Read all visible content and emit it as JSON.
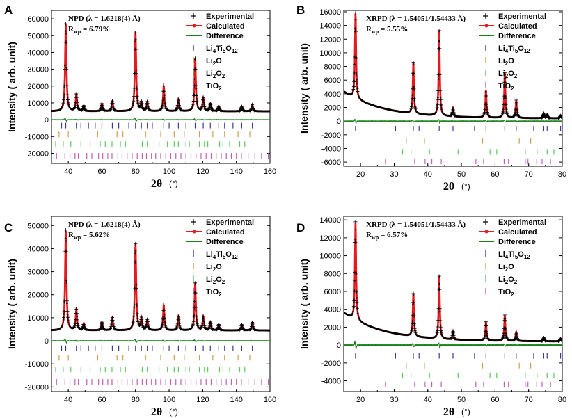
{
  "chart_data": [
    {
      "id": "A",
      "type": "line",
      "panel_label": "A",
      "annotation_title": "NPD (λ = 1.6218(4) Å)",
      "annotation_rwp": "R",
      "annotation_rwp_sub": "wp",
      "annotation_rwp_value": " = 6.79%",
      "ylabel": "Intensity ( arb. unit)",
      "xlabel": "2θ",
      "xlabel_unit": "(°)",
      "xlim": [
        30,
        160
      ],
      "ylim": [
        -26000,
        65000
      ],
      "xticks": [
        40,
        60,
        80,
        100,
        120,
        140,
        160
      ],
      "yticks": [
        -20000,
        -10000,
        0,
        10000,
        20000,
        30000,
        40000,
        50000,
        60000
      ],
      "background": {
        "start": 5000,
        "end": 5000,
        "decay": 0
      },
      "peaks": [
        {
          "x": 38.5,
          "h": 52000
        },
        {
          "x": 44.8,
          "h": 10000
        },
        {
          "x": 49.2,
          "h": 3200
        },
        {
          "x": 60,
          "h": 4500
        },
        {
          "x": 66.2,
          "h": 6000
        },
        {
          "x": 80,
          "h": 46500
        },
        {
          "x": 83.5,
          "h": 5000
        },
        {
          "x": 87,
          "h": 5500
        },
        {
          "x": 96.8,
          "h": 15000
        },
        {
          "x": 105.5,
          "h": 7000
        },
        {
          "x": 115.5,
          "h": 31500
        },
        {
          "x": 120.3,
          "h": 8000
        },
        {
          "x": 124.5,
          "h": 4500
        },
        {
          "x": 129.5,
          "h": 3000
        },
        {
          "x": 143.2,
          "h": 2800
        },
        {
          "x": 149.5,
          "h": 4000
        }
      ],
      "peak_width": 0.7,
      "difference_offset": 0,
      "difference_amp": 2000,
      "legend": [
        {
          "label": "Experimental",
          "type": "cross",
          "color": "#000000"
        },
        {
          "label": "Calculated",
          "type": "redline",
          "color": "#e41a1c"
        },
        {
          "label": "Difference",
          "type": "line",
          "color": "#1a7f1a"
        }
      ],
      "phases": [
        {
          "base": "Li",
          "parts": [
            [
              "Li",
              "4"
            ],
            [
              "Ti",
              "5"
            ],
            [
              "O",
              "12"
            ]
          ],
          "color": "#3a3a9a",
          "y": -3500,
          "ticks": [
            36,
            38.5,
            44.8,
            47.5,
            52,
            56,
            60,
            66.2,
            70,
            76,
            80,
            83.5,
            87,
            90,
            96.8,
            100,
            105.5,
            110,
            115.5,
            120.3,
            124.5,
            129.5,
            133,
            138,
            143.2,
            149.5
          ]
        },
        {
          "base": "Li2O",
          "parts": [
            [
              "Li",
              ""
            ],
            [
              "",
              ""
            ],
            [
              "O",
              ""
            ]
          ],
          "color": "#c8a050",
          "y": -8700,
          "ticks": [
            34.5,
            40,
            57.5,
            69,
            72.5,
            86,
            95,
            103,
            109,
            118,
            126,
            133,
            141,
            148
          ]
        },
        {
          "base": "Li2O2",
          "parts": [],
          "color": "#5ec85e",
          "y": -14500,
          "ticks": [
            32.5,
            37,
            41.5,
            47.5,
            53,
            59,
            62,
            66,
            71,
            74,
            84,
            87,
            94,
            99,
            103,
            105.5,
            110,
            112,
            118,
            121,
            123,
            130,
            132,
            136,
            142,
            145
          ]
        },
        {
          "base": "TiO2",
          "parts": [],
          "color": "#c060b0",
          "y": -21500,
          "ticks": [
            33,
            38,
            41,
            44,
            46,
            51,
            54,
            58,
            60.5,
            63.5,
            66,
            69.5,
            72,
            75,
            78,
            81,
            84,
            86.5,
            89.5,
            92,
            95,
            98,
            101,
            104,
            107,
            110,
            113,
            116,
            119,
            122,
            125,
            128,
            131,
            134,
            137,
            140,
            143,
            147,
            151,
            155,
            159
          ]
        }
      ]
    },
    {
      "id": "B",
      "type": "line",
      "panel_label": "B",
      "annotation_title": "XRPD (λ = 1.54051/1.54433 Å)",
      "annotation_rwp": "R",
      "annotation_rwp_sub": "wp",
      "annotation_rwp_value": " = 5.55%",
      "ylabel": "Intensity ( arb. unit)",
      "xlabel": "2θ",
      "xlabel_unit": "(°)",
      "xlim": [
        15,
        80
      ],
      "ylim": [
        -6600,
        16200
      ],
      "xticks": [
        20,
        30,
        40,
        50,
        60,
        70,
        80
      ],
      "yticks": [
        -6000,
        -4000,
        -2000,
        0,
        2000,
        4000,
        6000,
        8000,
        10000,
        12000,
        14000,
        16000
      ],
      "background": {
        "start": 4300,
        "end": 400,
        "decay": 12
      },
      "peaks": [
        {
          "x": 18.5,
          "h": 12500
        },
        {
          "x": 35.7,
          "h": 7500
        },
        {
          "x": 43.4,
          "h": 12500
        },
        {
          "x": 47.5,
          "h": 1200
        },
        {
          "x": 57.3,
          "h": 4000
        },
        {
          "x": 62.9,
          "h": 6600
        },
        {
          "x": 66.3,
          "h": 2600
        },
        {
          "x": 74.5,
          "h": 700
        },
        {
          "x": 75.5,
          "h": 500
        },
        {
          "x": 79.5,
          "h": 400
        }
      ],
      "peak_width": 0.3,
      "difference_offset": 0,
      "difference_amp": 600,
      "legend": [
        {
          "label": "Experimental",
          "type": "cross",
          "color": "#000000"
        },
        {
          "label": "Calculated",
          "type": "redline",
          "color": "#e41a1c"
        },
        {
          "label": "Difference",
          "type": "line",
          "color": "#1a7f1a"
        }
      ],
      "phases": [
        {
          "base": "Li",
          "parts": [],
          "color": "#3a3a9a",
          "y": -1100,
          "ticks": [
            18.5,
            30.4,
            35.7,
            37.4,
            43.4,
            47.5,
            53.9,
            57.3,
            62.9,
            66.3,
            71.5,
            74.5,
            75.5,
            79.5
          ]
        },
        {
          "base": "Li2O",
          "parts": [],
          "color": "#c8a050",
          "y": -2900,
          "ticks": [
            33.6,
            39,
            56.3,
            67.2,
            70.6
          ]
        },
        {
          "base": "Li2O2",
          "parts": [],
          "color": "#5ec85e",
          "y": -4500,
          "ticks": [
            32.5,
            35,
            40.5,
            49,
            58.5,
            60.5,
            69,
            72.5,
            75.5,
            77.5
          ]
        },
        {
          "base": "TiO2",
          "parts": [],
          "color": "#c060b0",
          "y": -5900,
          "ticks": [
            27.4,
            36.1,
            39.2,
            41.2,
            44,
            54.3,
            56.6,
            62.7,
            64,
            69,
            69.8,
            72.4,
            74,
            76.5
          ]
        }
      ]
    },
    {
      "id": "C",
      "type": "line",
      "panel_label": "C",
      "annotation_title": "NPD (λ = 1.6218(4) Å)",
      "annotation_rwp": "R",
      "annotation_rwp_sub": "wp",
      "annotation_rwp_value": " = 5.62%",
      "ylabel": "Intensity ( arb. unit)",
      "xlabel": "2θ",
      "xlabel_unit": "(°)",
      "xlim": [
        30,
        160
      ],
      "ylim": [
        -22000,
        54000
      ],
      "xticks": [
        40,
        60,
        80,
        100,
        120,
        140,
        160
      ],
      "yticks": [
        -20000,
        -10000,
        0,
        10000,
        20000,
        30000,
        40000,
        50000
      ],
      "background": {
        "start": 4500,
        "end": 4500,
        "decay": 0
      },
      "peaks": [
        {
          "x": 38.5,
          "h": 43500
        },
        {
          "x": 44.8,
          "h": 9000
        },
        {
          "x": 49.2,
          "h": 3000
        },
        {
          "x": 60,
          "h": 3500
        },
        {
          "x": 66.2,
          "h": 5500
        },
        {
          "x": 80,
          "h": 37500
        },
        {
          "x": 83.5,
          "h": 5000
        },
        {
          "x": 87,
          "h": 4500
        },
        {
          "x": 96.8,
          "h": 11000
        },
        {
          "x": 105.5,
          "h": 6000
        },
        {
          "x": 115.5,
          "h": 20500
        },
        {
          "x": 120.3,
          "h": 6000
        },
        {
          "x": 124.5,
          "h": 3500
        },
        {
          "x": 129.5,
          "h": 2500
        },
        {
          "x": 143.2,
          "h": 2500
        },
        {
          "x": 149.5,
          "h": 3500
        }
      ],
      "peak_width": 0.7,
      "difference_offset": 0,
      "difference_amp": 1800,
      "legend": [
        {
          "label": "Experimental",
          "type": "cross",
          "color": "#000000"
        },
        {
          "label": "Calculated",
          "type": "redline",
          "color": "#e41a1c"
        },
        {
          "label": "Difference",
          "type": "line",
          "color": "#1a7f1a"
        }
      ],
      "phases": [
        {
          "base": "Li",
          "parts": [],
          "color": "#3a3a9a",
          "y": -3200,
          "ticks": [
            36,
            38.5,
            44.8,
            47.5,
            52,
            56,
            60,
            66.2,
            70,
            76,
            80,
            83.5,
            87,
            90,
            96.8,
            100,
            105.5,
            110,
            115.5,
            120.3,
            124.5,
            129.5,
            133,
            138,
            143.2,
            149.5
          ]
        },
        {
          "base": "Li2O",
          "parts": [],
          "color": "#c8a050",
          "y": -7300,
          "ticks": [
            34.5,
            40,
            57.5,
            69,
            72.5,
            86,
            95,
            103,
            109,
            118,
            126,
            133,
            141,
            148
          ]
        },
        {
          "base": "Li2O2",
          "parts": [],
          "color": "#5ec85e",
          "y": -12400,
          "ticks": [
            32.5,
            37,
            41.5,
            47.5,
            53,
            59,
            62,
            66,
            71,
            74,
            84,
            87,
            94,
            99,
            103,
            105.5,
            110,
            112,
            118,
            121,
            123,
            130,
            132,
            136,
            142,
            145
          ]
        },
        {
          "base": "TiO2",
          "parts": [],
          "color": "#c060b0",
          "y": -17800,
          "ticks": [
            33,
            38,
            41,
            44,
            46,
            51,
            54,
            58,
            60.5,
            63.5,
            66,
            69.5,
            72,
            75,
            78,
            81,
            84,
            86.5,
            89.5,
            92,
            95,
            98,
            101,
            104,
            107,
            110,
            113,
            116,
            119,
            122,
            125,
            128,
            131,
            134,
            137,
            140,
            143,
            147,
            151,
            155,
            159
          ]
        }
      ]
    },
    {
      "id": "D",
      "type": "line",
      "panel_label": "D",
      "annotation_title": "XRPD (λ = 1.54051/1.54433 Å)",
      "annotation_rwp": "R",
      "annotation_rwp_sub": "wp",
      "annotation_rwp_value": " = 6.57%",
      "ylabel": "Intensity ( arb. unit)",
      "xlabel": "2θ",
      "xlabel_unit": "(°)",
      "xlim": [
        15,
        80
      ],
      "ylim": [
        -5200,
        14400
      ],
      "xticks": [
        20,
        30,
        40,
        50,
        60,
        70,
        80
      ],
      "yticks": [
        -4000,
        -2000,
        0,
        2000,
        4000,
        6000,
        8000,
        10000,
        12000,
        14000
      ],
      "background": {
        "start": 3600,
        "end": 400,
        "decay": 12
      },
      "peaks": [
        {
          "x": 18.5,
          "h": 11000
        },
        {
          "x": 35.7,
          "h": 4800
        },
        {
          "x": 43.4,
          "h": 7000
        },
        {
          "x": 47.5,
          "h": 900
        },
        {
          "x": 57.3,
          "h": 2100
        },
        {
          "x": 62.9,
          "h": 2900
        },
        {
          "x": 66.3,
          "h": 1000
        },
        {
          "x": 74.5,
          "h": 400
        },
        {
          "x": 79.5,
          "h": 300
        }
      ],
      "peak_width": 0.3,
      "difference_offset": 0,
      "difference_amp": 900,
      "legend": [
        {
          "label": "Experimental",
          "type": "cross",
          "color": "#000000"
        },
        {
          "label": "Calculated",
          "type": "redline",
          "color": "#e41a1c"
        },
        {
          "label": "Difference",
          "type": "line",
          "color": "#1a7f1a"
        }
      ],
      "phases": [
        {
          "base": "Li",
          "parts": [],
          "color": "#3a3a9a",
          "y": -1200,
          "ticks": [
            18.5,
            30.4,
            35.7,
            37.4,
            43.4,
            47.5,
            53.9,
            57.3,
            62.9,
            66.3,
            71.5,
            74.5,
            75.5,
            79.5
          ]
        },
        {
          "base": "Li2O",
          "parts": [],
          "color": "#c8a050",
          "y": -2300,
          "ticks": [
            33.6,
            39,
            56.3,
            67.2,
            70.6
          ]
        },
        {
          "base": "Li2O2",
          "parts": [],
          "color": "#5ec85e",
          "y": -3400,
          "ticks": [
            32.5,
            35,
            40.5,
            49,
            58.5,
            60.5,
            69,
            72.5,
            75.5,
            77.5
          ]
        },
        {
          "base": "TiO2",
          "parts": [],
          "color": "#c060b0",
          "y": -4400,
          "ticks": [
            27.4,
            36.1,
            39.2,
            41.2,
            44,
            54.3,
            56.6,
            62.7,
            64,
            69,
            69.8,
            72.4,
            74,
            76.5
          ]
        }
      ]
    }
  ],
  "phase_labels": [
    {
      "pieces": [
        [
          "Li",
          ""
        ],
        [
          "4",
          "sub"
        ],
        [
          "Ti",
          ""
        ],
        [
          "5",
          "sub"
        ],
        [
          "O",
          ""
        ],
        [
          "12",
          "sub"
        ]
      ],
      "color": "#3a3a9a"
    },
    {
      "pieces": [
        [
          "Li",
          ""
        ],
        [
          "2",
          "sub"
        ],
        [
          "O",
          ""
        ]
      ],
      "color": "#c8a050"
    },
    {
      "pieces": [
        [
          "Li",
          ""
        ],
        [
          "2",
          "sub"
        ],
        [
          "O",
          ""
        ],
        [
          "2",
          "sub"
        ]
      ],
      "color": "#5ec85e"
    },
    {
      "pieces": [
        [
          "TiO",
          ""
        ],
        [
          "2",
          "sub"
        ]
      ],
      "color": "#c060b0"
    }
  ]
}
